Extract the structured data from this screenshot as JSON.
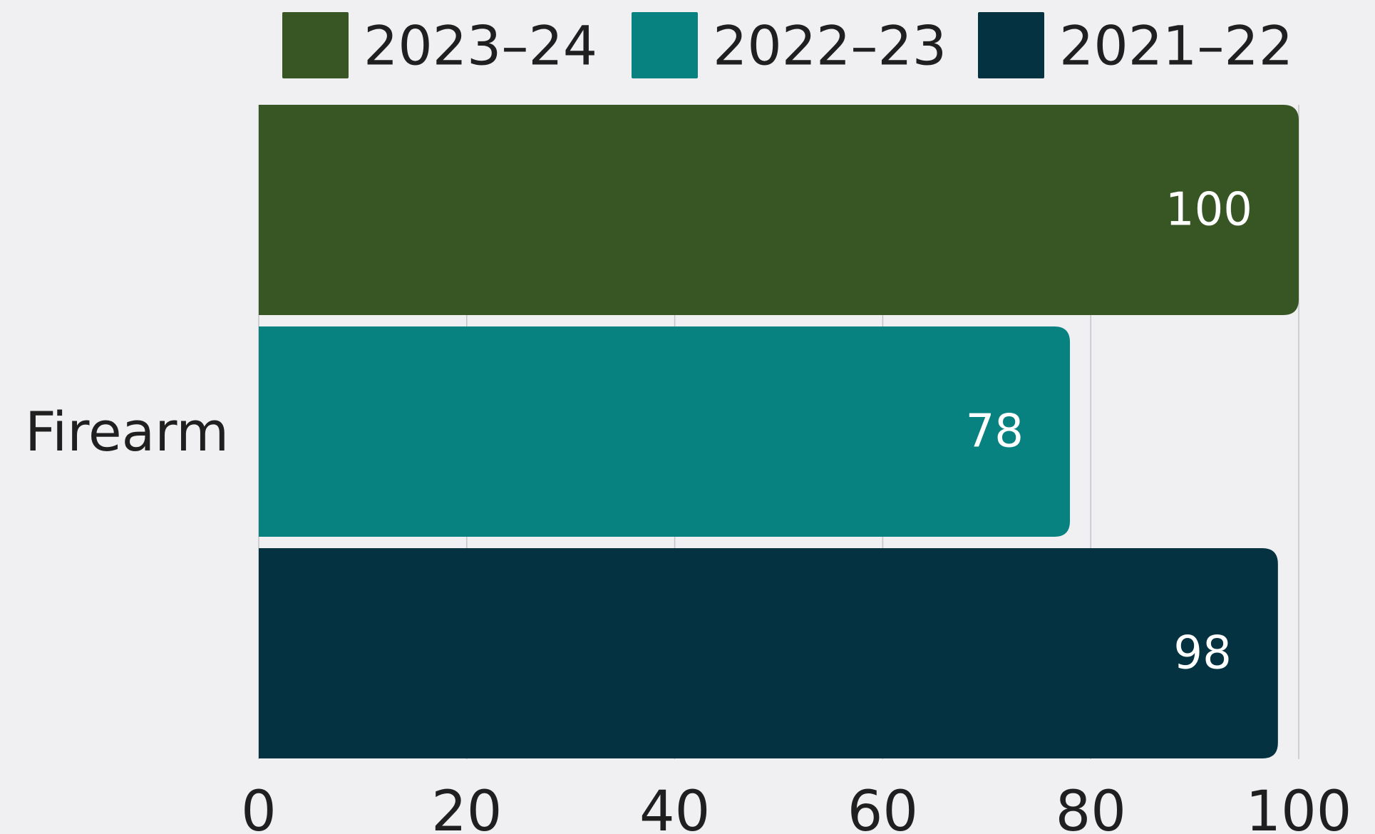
{
  "chart_data": {
    "type": "bar",
    "orientation": "horizontal",
    "categories": [
      "Firearm"
    ],
    "series": [
      {
        "name": "2023–24",
        "values": [
          100
        ],
        "color": "#375623"
      },
      {
        "name": "2022–23",
        "values": [
          78
        ],
        "color": "#078281"
      },
      {
        "name": "2021–22",
        "values": [
          98
        ],
        "color": "#043240"
      }
    ],
    "xlim": [
      0,
      100
    ],
    "xticks": [
      0,
      20,
      40,
      60,
      80,
      100
    ],
    "grid": true,
    "legend": "top",
    "data_labels": true
  }
}
